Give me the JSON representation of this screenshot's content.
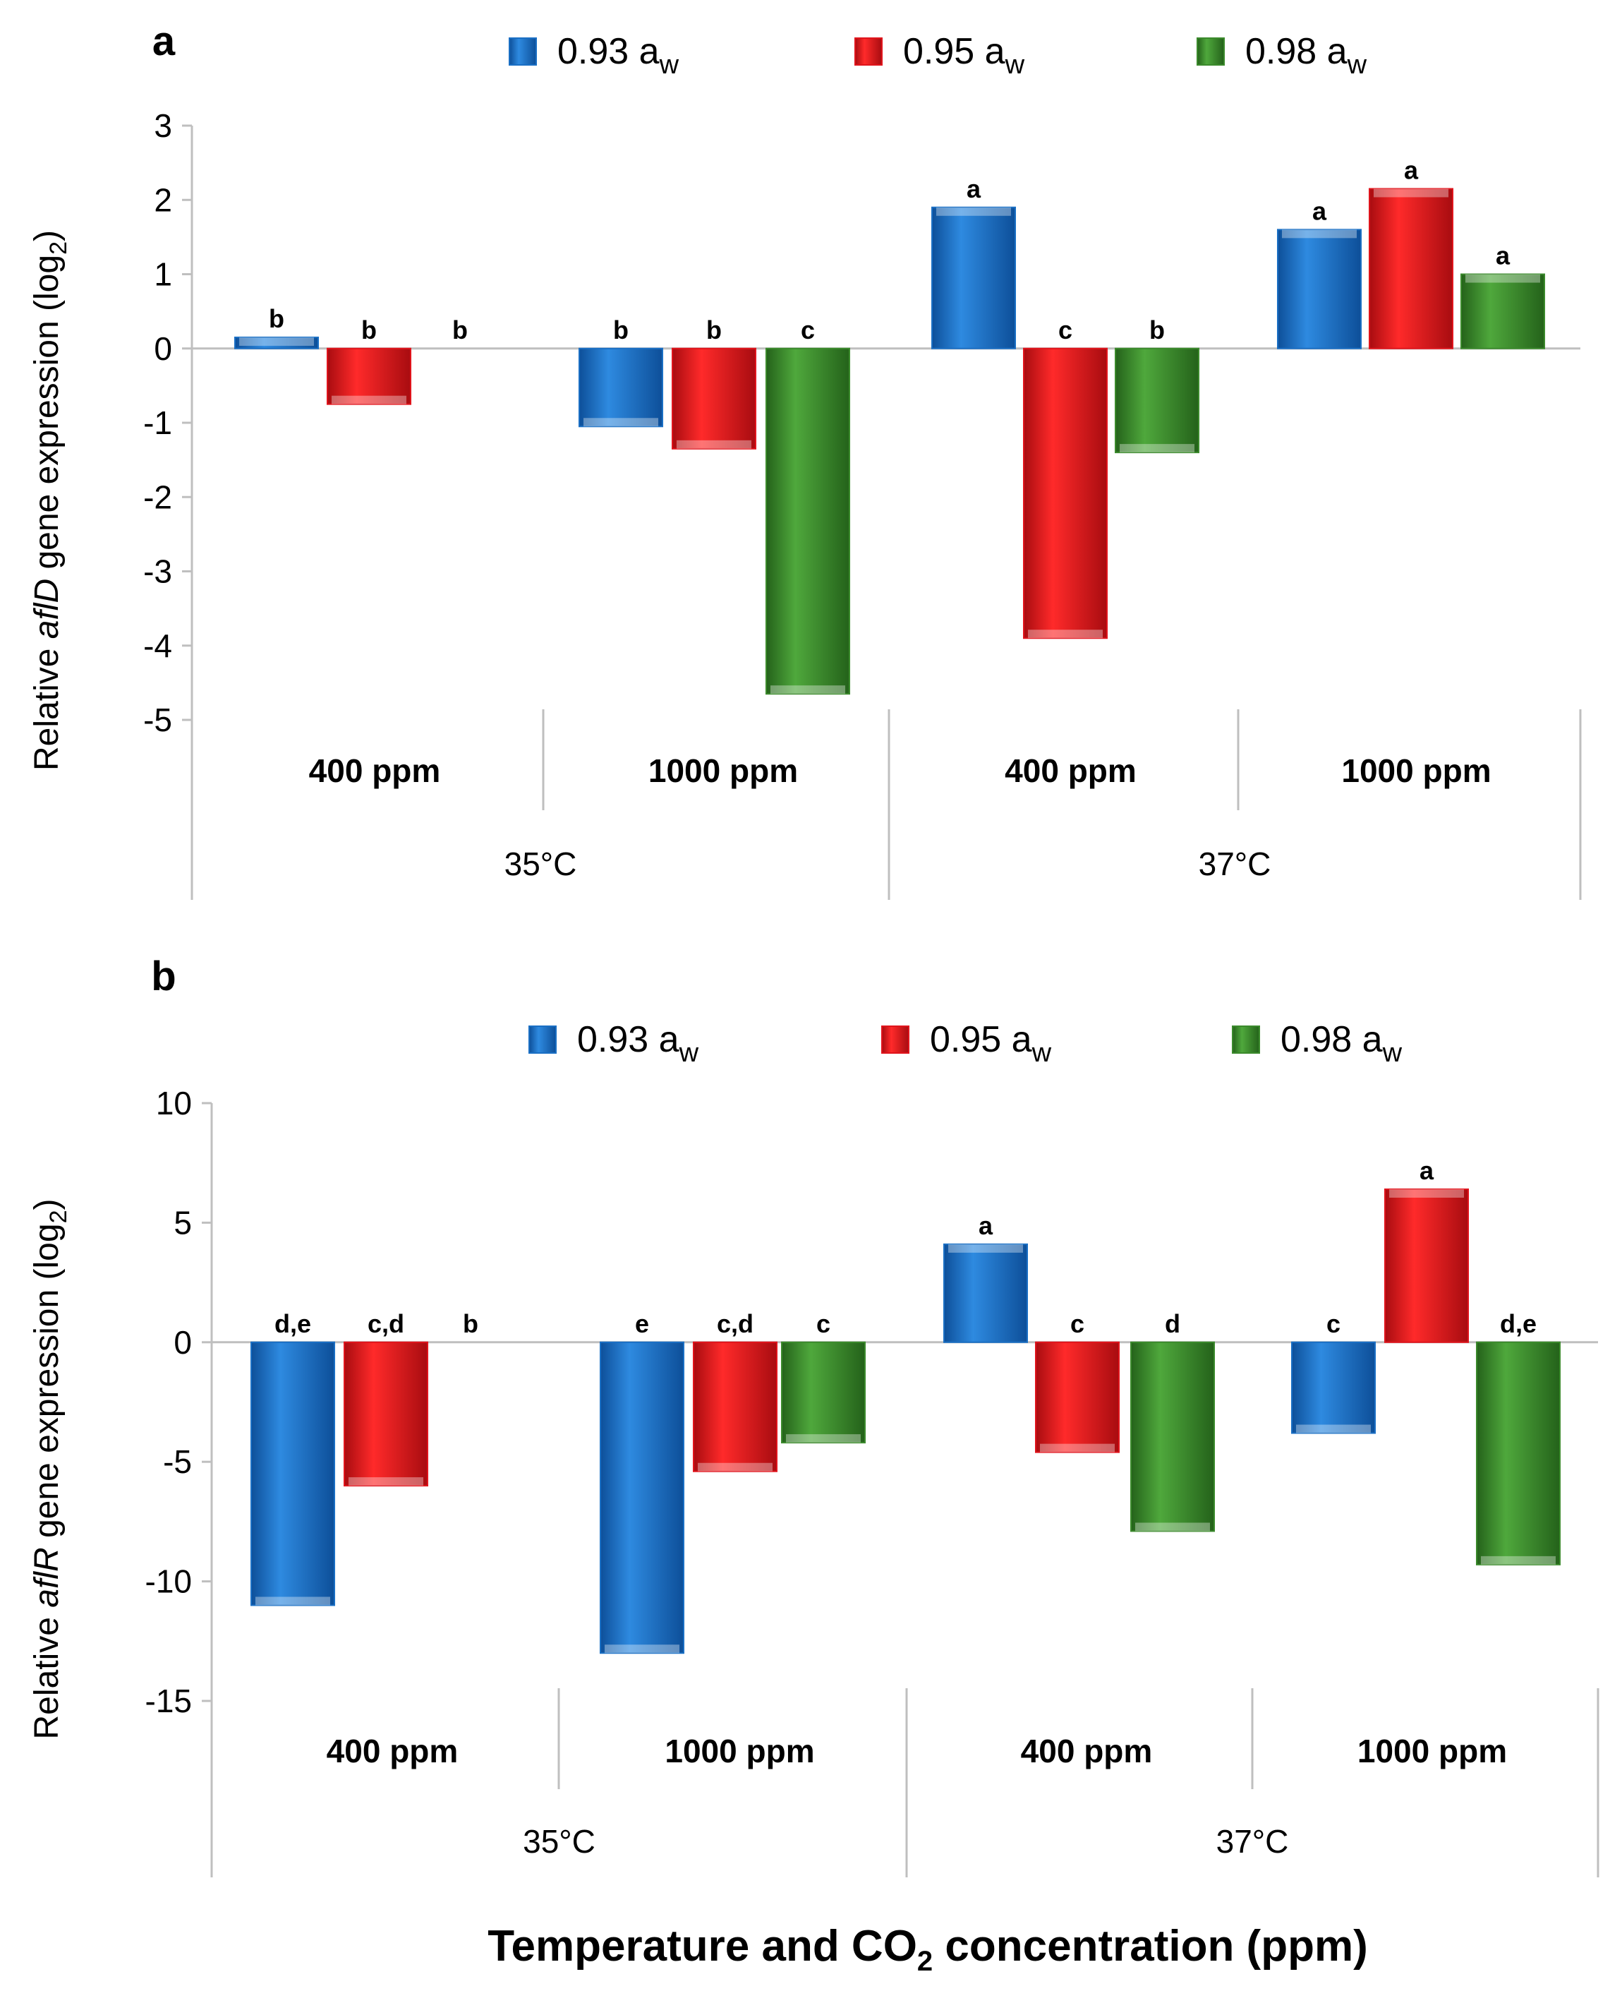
{
  "colors": {
    "blue": "#1a6fc4",
    "red": "#e0141c",
    "green": "#3b8a2c"
  },
  "xlabel_main": "Temperature and CO",
  "xlabel_sub": "2",
  "xlabel_tail": " concentration (ppm)",
  "chart_data": [
    {
      "type": "bar",
      "panel": "a",
      "gene": "aflD",
      "ylabel_pre": "Relative ",
      "ylabel_gene": "aflD",
      "ylabel_post": " gene expression (log",
      "ylabel_sub": "2",
      "ylabel_close": ")",
      "ylim": [
        -5,
        3
      ],
      "yticks": [
        3,
        2,
        1,
        0,
        -1,
        -2,
        -3,
        -4,
        -5
      ],
      "legend": [
        "0.93 a",
        "0.95 a",
        "0.98 a"
      ],
      "legend_sub": "w",
      "groups": [
        "400 ppm",
        "1000 ppm",
        "400 ppm",
        "1000 ppm"
      ],
      "temperatures": [
        "35°C",
        "37°C"
      ],
      "series": [
        {
          "name": "0.93 aw",
          "values": [
            0.15,
            -1.05,
            1.9,
            1.6
          ],
          "letters": [
            "b",
            "b",
            "a",
            "a"
          ]
        },
        {
          "name": "0.95 aw",
          "values": [
            -0.75,
            -1.35,
            -3.9,
            2.15
          ],
          "letters": [
            "b",
            "b",
            "c",
            "a"
          ]
        },
        {
          "name": "0.98 aw",
          "values": [
            0.0,
            -4.65,
            -1.4,
            1.0
          ],
          "letters": [
            "b",
            "c",
            "b",
            "a"
          ]
        }
      ]
    },
    {
      "type": "bar",
      "panel": "b",
      "gene": "aflR",
      "ylabel_pre": "Relative ",
      "ylabel_gene": "aflR",
      "ylabel_post": " gene expression (log",
      "ylabel_sub": "2",
      "ylabel_close": ")",
      "ylim": [
        -15,
        10
      ],
      "yticks": [
        10,
        5,
        0,
        -5,
        -10,
        -15
      ],
      "legend": [
        "0.93 a",
        "0.95 a",
        "0.98 a"
      ],
      "legend_sub": "w",
      "groups": [
        "400 ppm",
        "1000 ppm",
        "400 ppm",
        "1000 ppm"
      ],
      "temperatures": [
        "35°C",
        "37°C"
      ],
      "series": [
        {
          "name": "0.93 aw",
          "values": [
            -11.0,
            -13.0,
            4.1,
            -3.8
          ],
          "letters": [
            "d,e",
            "e",
            "a",
            "c"
          ]
        },
        {
          "name": "0.95 aw",
          "values": [
            -6.0,
            -5.4,
            -4.6,
            6.4
          ],
          "letters": [
            "c,d",
            "c,d",
            "c",
            "a"
          ]
        },
        {
          "name": "0.98 aw",
          "values": [
            0.0,
            -4.2,
            -7.9,
            -9.3
          ],
          "letters": [
            "b",
            "c",
            "d",
            "d,e"
          ]
        }
      ]
    }
  ]
}
